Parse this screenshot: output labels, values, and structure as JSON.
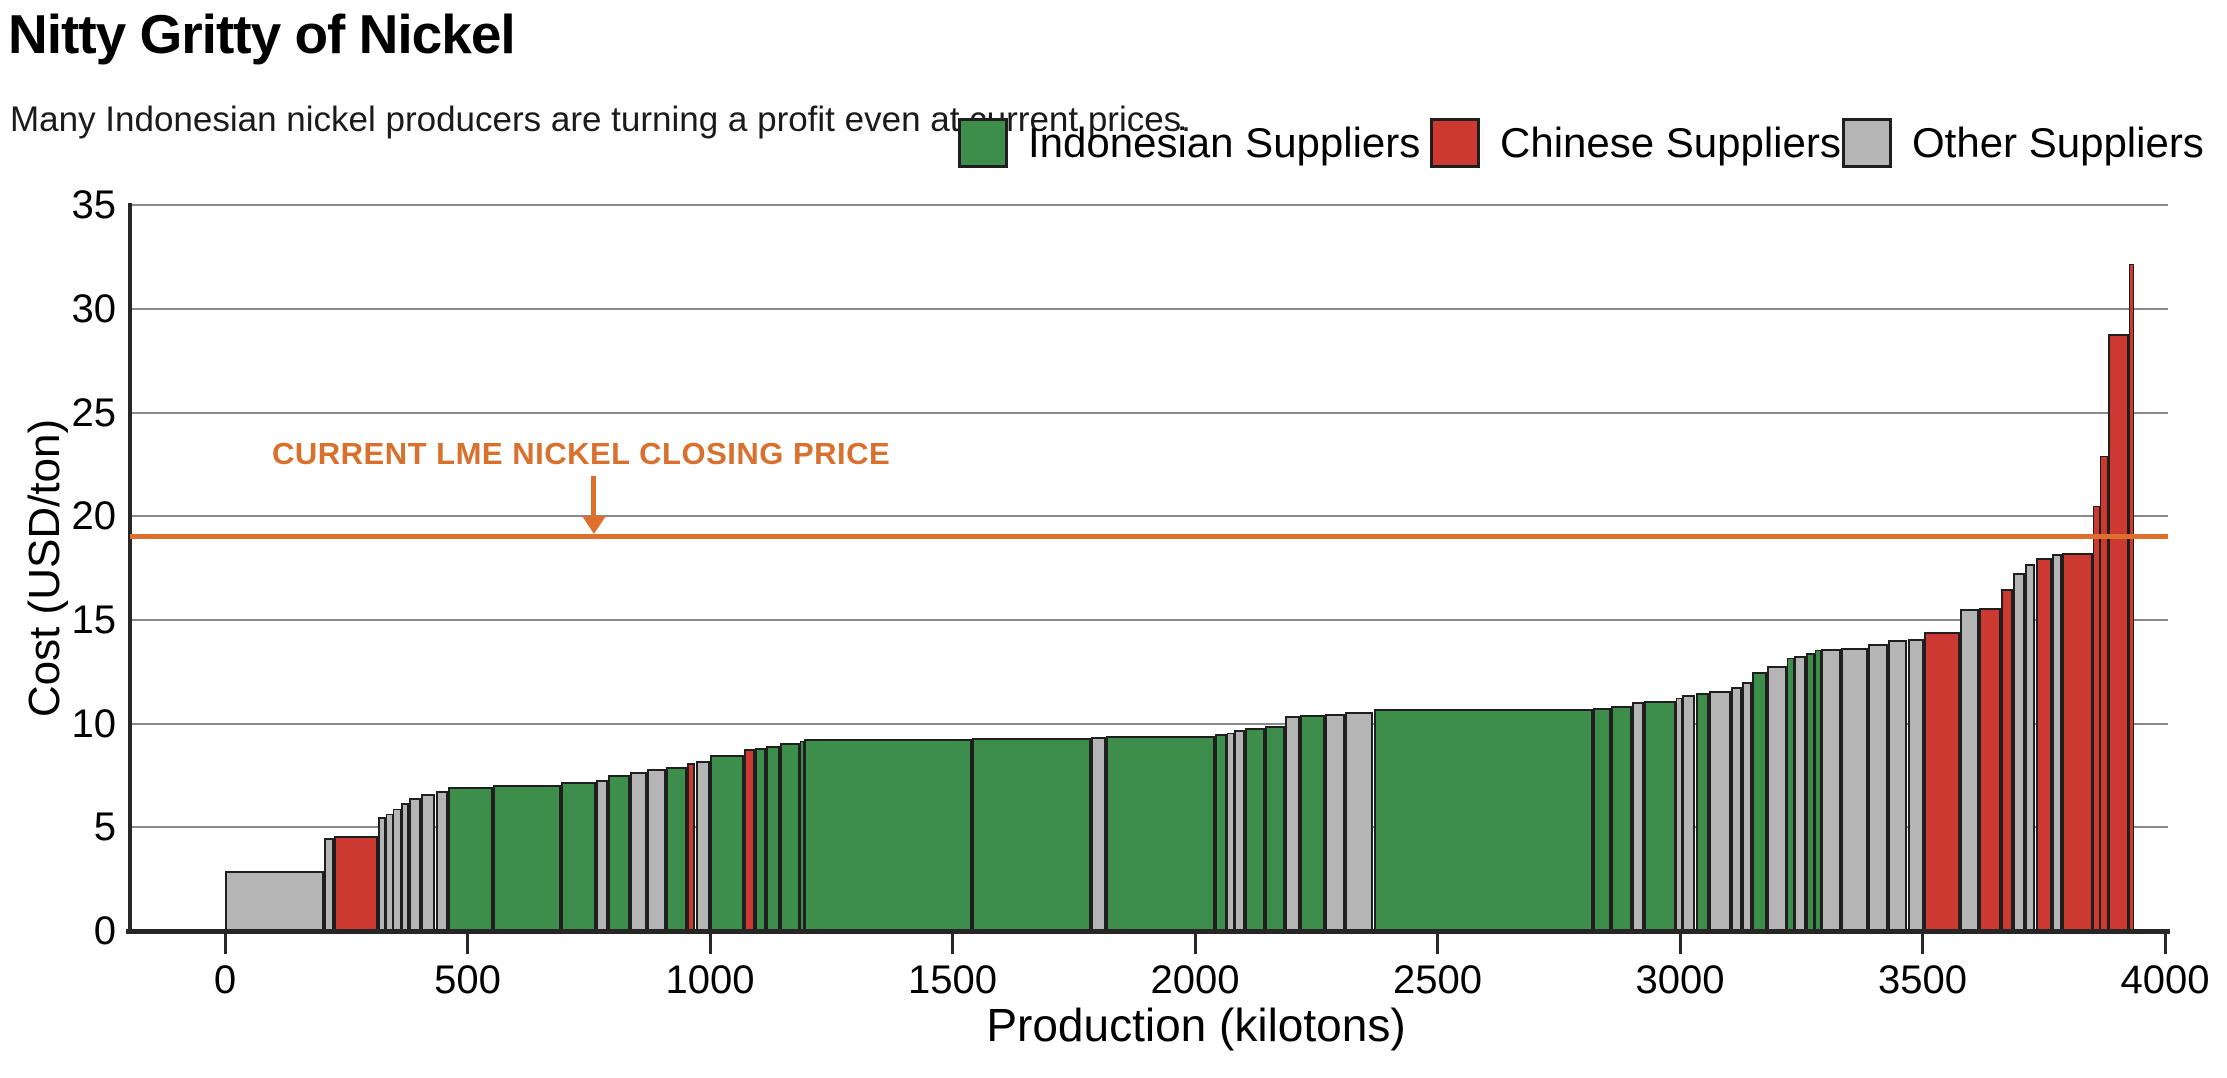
{
  "header": {
    "title": "Nitty Gritty of Nickel",
    "subtitle": "Many Indonesian nickel producers are turning a profit even at current prices."
  },
  "legend": {
    "items": [
      {
        "key": "ID",
        "label": "Indonesian Suppliers",
        "color": "#3E8E4B"
      },
      {
        "key": "CN",
        "label": "Chinese Suppliers",
        "color": "#CC3931"
      },
      {
        "key": "OT",
        "label": "Other Suppliers",
        "color": "#B5B5B5"
      }
    ]
  },
  "annotation": {
    "text": "CURRENT LME NICKEL CLOSING PRICE",
    "color": "#D8702E"
  },
  "chart_data": {
    "type": "bar",
    "variant": "variable-width cost curve (supply stack)",
    "title": "Nitty Gritty of Nickel",
    "xlabel": "Production (kilotons)",
    "ylabel": "Cost (USD/ton)",
    "xlim": [
      0,
      4000
    ],
    "ylim": [
      0,
      35
    ],
    "x_ticks": [
      0,
      500,
      1000,
      1500,
      2000,
      2500,
      3000,
      3500,
      4000
    ],
    "y_ticks": [
      0,
      5,
      10,
      15,
      20,
      25,
      30,
      35
    ],
    "grid": "horizontal",
    "legend_position": "top-right",
    "reference_line": {
      "value": 19,
      "color": "#DD6F2D",
      "label": "CURRENT LME NICKEL CLOSING PRICE"
    },
    "categories_key": {
      "ID": "Indonesian Suppliers",
      "CN": "Chinese Suppliers",
      "OT": "Other Suppliers"
    },
    "colors": {
      "ID": "#3E8E4B",
      "CN": "#CC3931",
      "OT": "#B5B5B5"
    },
    "bars_format": [
      "production_start_kt",
      "production_end_kt",
      "cost_usd_per_ton",
      "category"
    ],
    "bars": [
      [
        0,
        205,
        2.9,
        "OT"
      ],
      [
        205,
        225,
        4.5,
        "OT"
      ],
      [
        225,
        315,
        4.6,
        "CN"
      ],
      [
        315,
        332,
        5.5,
        "OT"
      ],
      [
        332,
        346,
        5.65,
        "OT"
      ],
      [
        346,
        362,
        5.9,
        "OT"
      ],
      [
        362,
        380,
        6.2,
        "OT"
      ],
      [
        380,
        404,
        6.4,
        "OT"
      ],
      [
        404,
        434,
        6.6,
        "OT"
      ],
      [
        434,
        460,
        6.75,
        "OT"
      ],
      [
        460,
        552,
        6.95,
        "ID"
      ],
      [
        552,
        693,
        7.05,
        "ID"
      ],
      [
        693,
        765,
        7.2,
        "ID"
      ],
      [
        765,
        790,
        7.3,
        "OT"
      ],
      [
        790,
        835,
        7.55,
        "ID"
      ],
      [
        835,
        870,
        7.65,
        "OT"
      ],
      [
        870,
        910,
        7.8,
        "OT"
      ],
      [
        910,
        953,
        7.9,
        "ID"
      ],
      [
        953,
        970,
        8.1,
        "CN"
      ],
      [
        970,
        1000,
        8.2,
        "OT"
      ],
      [
        1000,
        1070,
        8.5,
        "ID"
      ],
      [
        1070,
        1092,
        8.8,
        "CN"
      ],
      [
        1092,
        1115,
        8.85,
        "ID"
      ],
      [
        1115,
        1145,
        8.95,
        "ID"
      ],
      [
        1145,
        1185,
        9.05,
        "ID"
      ],
      [
        1185,
        1193,
        9.15,
        "ID"
      ],
      [
        1193,
        1540,
        9.25,
        "ID"
      ],
      [
        1540,
        1786,
        9.3,
        "ID"
      ],
      [
        1786,
        1817,
        9.35,
        "OT"
      ],
      [
        1817,
        2042,
        9.4,
        "ID"
      ],
      [
        2042,
        2066,
        9.5,
        "ID"
      ],
      [
        2066,
        2080,
        9.55,
        "OT"
      ],
      [
        2080,
        2104,
        9.7,
        "OT"
      ],
      [
        2104,
        2145,
        9.8,
        "ID"
      ],
      [
        2145,
        2186,
        9.9,
        "ID"
      ],
      [
        2186,
        2217,
        10.35,
        "OT"
      ],
      [
        2217,
        2268,
        10.4,
        "ID"
      ],
      [
        2268,
        2310,
        10.45,
        "OT"
      ],
      [
        2310,
        2368,
        10.55,
        "OT"
      ],
      [
        2368,
        2820,
        10.7,
        "ID"
      ],
      [
        2820,
        2857,
        10.75,
        "ID"
      ],
      [
        2857,
        2901,
        10.85,
        "ID"
      ],
      [
        2901,
        2925,
        11.05,
        "OT"
      ],
      [
        2925,
        2992,
        11.1,
        "ID"
      ],
      [
        2992,
        3005,
        11.25,
        "OT"
      ],
      [
        3005,
        3032,
        11.4,
        "OT"
      ],
      [
        3032,
        3059,
        11.5,
        "ID"
      ],
      [
        3059,
        3105,
        11.6,
        "OT"
      ],
      [
        3105,
        3127,
        11.75,
        "OT"
      ],
      [
        3127,
        3149,
        12.0,
        "OT"
      ],
      [
        3149,
        3180,
        12.5,
        "ID"
      ],
      [
        3180,
        3220,
        12.8,
        "OT"
      ],
      [
        3220,
        3235,
        13.15,
        "ID"
      ],
      [
        3235,
        3259,
        13.25,
        "OT"
      ],
      [
        3259,
        3278,
        13.4,
        "ID"
      ],
      [
        3278,
        3291,
        13.55,
        "ID"
      ],
      [
        3291,
        3332,
        13.6,
        "OT"
      ],
      [
        3332,
        3387,
        13.65,
        "OT"
      ],
      [
        3387,
        3428,
        13.85,
        "OT"
      ],
      [
        3428,
        3469,
        14.05,
        "OT"
      ],
      [
        3469,
        3503,
        14.1,
        "OT"
      ],
      [
        3503,
        3578,
        14.45,
        "CN"
      ],
      [
        3578,
        3616,
        15.55,
        "OT"
      ],
      [
        3616,
        3662,
        15.6,
        "CN"
      ],
      [
        3662,
        3687,
        16.5,
        "CN"
      ],
      [
        3687,
        3712,
        17.25,
        "OT"
      ],
      [
        3712,
        3733,
        17.7,
        "OT"
      ],
      [
        3733,
        3767,
        18.0,
        "CN"
      ],
      [
        3767,
        3788,
        18.2,
        "OT"
      ],
      [
        3788,
        3852,
        18.25,
        "CN"
      ],
      [
        3852,
        3866,
        20.5,
        "CN"
      ],
      [
        3866,
        3882,
        22.9,
        "CN"
      ],
      [
        3882,
        3926,
        28.8,
        "CN"
      ],
      [
        3926,
        3936,
        32.2,
        "CN"
      ]
    ]
  }
}
